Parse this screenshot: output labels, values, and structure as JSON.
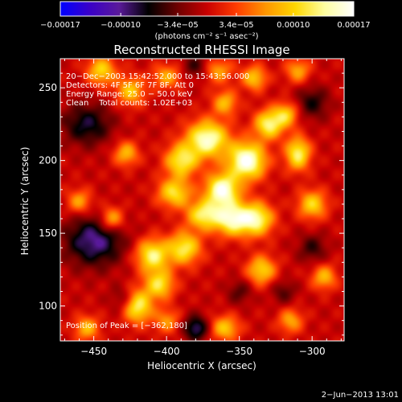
{
  "chart_data": {
    "type": "heatmap",
    "title": "Reconstructed RHESSI Image",
    "xlabel": "Heliocentric X (arcsec)",
    "ylabel": "Heliocentric Y (arcsec)",
    "xlim": [
      -473,
      -278
    ],
    "ylim": [
      76,
      270
    ],
    "x_ticks": [
      -450,
      -400,
      -350,
      -300
    ],
    "y_ticks": [
      100,
      150,
      200,
      250
    ],
    "x_tick_labels": [
      "−450",
      "−400",
      "−350",
      "−300"
    ],
    "y_tick_labels": [
      "100",
      "150",
      "200",
      "250"
    ],
    "colorbar": {
      "range": [
        -0.00017,
        0.00017
      ],
      "ticks": [
        -0.00017,
        -0.0001,
        -3.4e-05,
        3.4e-05,
        0.0001,
        0.00017
      ],
      "tick_labels": [
        "−0.00017",
        "−0.00010",
        "−3.4e−05",
        "3.4e−05",
        "0.00010",
        "0.00017"
      ],
      "unit": "(photons cm⁻² s⁻¹ asec⁻²)",
      "stops": [
        "#0000ff",
        "#3a00c8",
        "#5a1a9a",
        "#000000",
        "#6e0000",
        "#c80000",
        "#ff3c00",
        "#ff9600",
        "#ffd700",
        "#ffffa0",
        "#ffffff"
      ]
    },
    "annotations": [
      "20−Dec−2003 15:42:52.000 to 15:43:56.000",
      "Detectors: 4F 5F 6F 7F 8F, Att 0",
      "Energy Range: 25.0 − 50.0 keV",
      "Clean    Total counts: 1.02E+03"
    ],
    "peak_label": "Position of Peak = [−362,180]",
    "peak": [
      -362,
      180
    ],
    "components": [
      {
        "x": -345,
        "y": 200,
        "amp": 1.0,
        "sx": 9,
        "sy": 9
      },
      {
        "x": -362,
        "y": 180,
        "amp": 0.95,
        "sx": 8,
        "sy": 8
      },
      {
        "x": -372,
        "y": 215,
        "amp": 0.9,
        "sx": 10,
        "sy": 9
      },
      {
        "x": -355,
        "y": 160,
        "amp": 0.85,
        "sx": 9,
        "sy": 8
      },
      {
        "x": -338,
        "y": 160,
        "amp": 0.75,
        "sx": 8,
        "sy": 8
      },
      {
        "x": -375,
        "y": 163,
        "amp": 0.7,
        "sx": 8,
        "sy": 7
      },
      {
        "x": -330,
        "y": 225,
        "amp": 0.75,
        "sx": 7,
        "sy": 7
      },
      {
        "x": -390,
        "y": 200,
        "amp": 0.7,
        "sx": 8,
        "sy": 8
      },
      {
        "x": -395,
        "y": 178,
        "amp": 0.65,
        "sx": 8,
        "sy": 7
      },
      {
        "x": -388,
        "y": 140,
        "amp": 0.7,
        "sx": 8,
        "sy": 8
      },
      {
        "x": -410,
        "y": 135,
        "amp": 0.75,
        "sx": 8,
        "sy": 8
      },
      {
        "x": -405,
        "y": 115,
        "amp": 0.65,
        "sx": 7,
        "sy": 7
      },
      {
        "x": -420,
        "y": 100,
        "amp": 0.75,
        "sx": 7,
        "sy": 8
      },
      {
        "x": -335,
        "y": 125,
        "amp": 0.6,
        "sx": 7,
        "sy": 7
      },
      {
        "x": -310,
        "y": 205,
        "amp": 0.75,
        "sx": 6,
        "sy": 8
      },
      {
        "x": -318,
        "y": 232,
        "amp": 0.55,
        "sx": 6,
        "sy": 6
      },
      {
        "x": -300,
        "y": 170,
        "amp": 0.6,
        "sx": 7,
        "sy": 7
      },
      {
        "x": -292,
        "y": 120,
        "amp": 0.5,
        "sx": 6,
        "sy": 6
      },
      {
        "x": -445,
        "y": 262,
        "amp": 0.6,
        "sx": 7,
        "sy": 7
      },
      {
        "x": -425,
        "y": 248,
        "amp": 0.55,
        "sx": 7,
        "sy": 7
      },
      {
        "x": -400,
        "y": 258,
        "amp": 0.45,
        "sx": 7,
        "sy": 6
      },
      {
        "x": -365,
        "y": 262,
        "amp": 0.45,
        "sx": 7,
        "sy": 6
      },
      {
        "x": -340,
        "y": 257,
        "amp": 0.55,
        "sx": 6,
        "sy": 6
      },
      {
        "x": -310,
        "y": 262,
        "amp": 0.45,
        "sx": 6,
        "sy": 6
      },
      {
        "x": -428,
        "y": 205,
        "amp": 0.5,
        "sx": 6,
        "sy": 6
      },
      {
        "x": -460,
        "y": 172,
        "amp": 0.45,
        "sx": 6,
        "sy": 6
      },
      {
        "x": -438,
        "y": 160,
        "amp": 0.55,
        "sx": 6,
        "sy": 6
      },
      {
        "x": -455,
        "y": 85,
        "amp": 0.5,
        "sx": 6,
        "sy": 6
      },
      {
        "x": -360,
        "y": 85,
        "amp": 0.55,
        "sx": 7,
        "sy": 6
      },
      {
        "x": -315,
        "y": 90,
        "amp": 0.45,
        "sx": 6,
        "sy": 6
      },
      {
        "x": -400,
        "y": 90,
        "amp": 0.4,
        "sx": 6,
        "sy": 6
      },
      {
        "x": -360,
        "y": 240,
        "amp": 0.5,
        "sx": 6,
        "sy": 6
      },
      {
        "x": -450,
        "y": 145,
        "amp": -0.6,
        "sx": 14,
        "sy": 12
      },
      {
        "x": -455,
        "y": 225,
        "amp": -0.45,
        "sx": 12,
        "sy": 10
      },
      {
        "x": -380,
        "y": 85,
        "amp": -0.55,
        "sx": 6,
        "sy": 6
      },
      {
        "x": -300,
        "y": 240,
        "amp": -0.35,
        "sx": 8,
        "sy": 8
      },
      {
        "x": -300,
        "y": 140,
        "amp": -0.3,
        "sx": 7,
        "sy": 7
      },
      {
        "x": -320,
        "y": 110,
        "amp": -0.25,
        "sx": 6,
        "sy": 6
      },
      {
        "x": -350,
        "y": 110,
        "amp": -0.25,
        "sx": 6,
        "sy": 6
      },
      {
        "x": -380,
        "y": 265,
        "amp": -0.3,
        "sx": 7,
        "sy": 6
      },
      {
        "x": -430,
        "y": 105,
        "amp": -0.25,
        "sx": 6,
        "sy": 6
      }
    ]
  },
  "footer": {
    "date": "2−Jun−2013 13:01"
  }
}
